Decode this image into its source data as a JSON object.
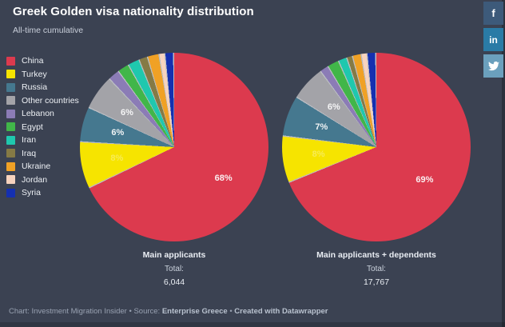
{
  "header": {
    "title": "Greek Golden visa nationality distribution",
    "subtitle": "All-time cumulative"
  },
  "colors": {
    "background": "#3b4252",
    "text_primary": "#ffffff",
    "text_secondary": "#c9cfda",
    "facebook_tile": "#3d5a7a",
    "linkedin_tile": "#2a7ba6",
    "twitter_tile": "#6ba0bd"
  },
  "social": [
    {
      "name": "facebook",
      "glyph": "f"
    },
    {
      "name": "linkedin",
      "glyph": "in"
    },
    {
      "name": "twitter",
      "glyph": "twitter-bird"
    }
  ],
  "chart_data": {
    "type": "pie",
    "title": "Greek Golden visa nationality distribution",
    "subtitle": "All-time cumulative",
    "legend_position": "left",
    "label_threshold_pct": 5,
    "categories": [
      "China",
      "Turkey",
      "Russia",
      "Other countries",
      "Lebanon",
      "Egypt",
      "Iran",
      "Iraq",
      "Ukraine",
      "Jordan",
      "Syria"
    ],
    "slice_colors": [
      "#dc3a4e",
      "#f6e400",
      "#45788f",
      "#a3a3a8",
      "#8b7cb6",
      "#41b649",
      "#1fc8ae",
      "#857a45",
      "#f0a125",
      "#f7d3be",
      "#1530b0"
    ],
    "series": [
      {
        "name": "Main applicants",
        "total_label": "Total:",
        "total": "6,044",
        "values": [
          68,
          8,
          6,
          6,
          2,
          2,
          2,
          1.5,
          2,
          1,
          1.5
        ],
        "shown_labels": [
          "68%",
          "8%",
          "6%",
          "6%"
        ]
      },
      {
        "name": "Main applicants + dependents",
        "total_label": "Total:",
        "total": "17,767",
        "values": [
          69,
          8,
          7,
          6,
          1.5,
          2,
          1.5,
          1,
          1.5,
          1,
          1.5
        ],
        "shown_labels": [
          "69%",
          "8%",
          "7%",
          "6%"
        ]
      }
    ]
  },
  "footer": {
    "segments": [
      {
        "text": "Chart: Investment Migration Insider • Source: ",
        "bold": false
      },
      {
        "text": "Enterprise Greece",
        "bold": true
      },
      {
        "text": " • ",
        "bold": false
      },
      {
        "text": "Created with Datawrapper",
        "bold": true
      }
    ]
  }
}
